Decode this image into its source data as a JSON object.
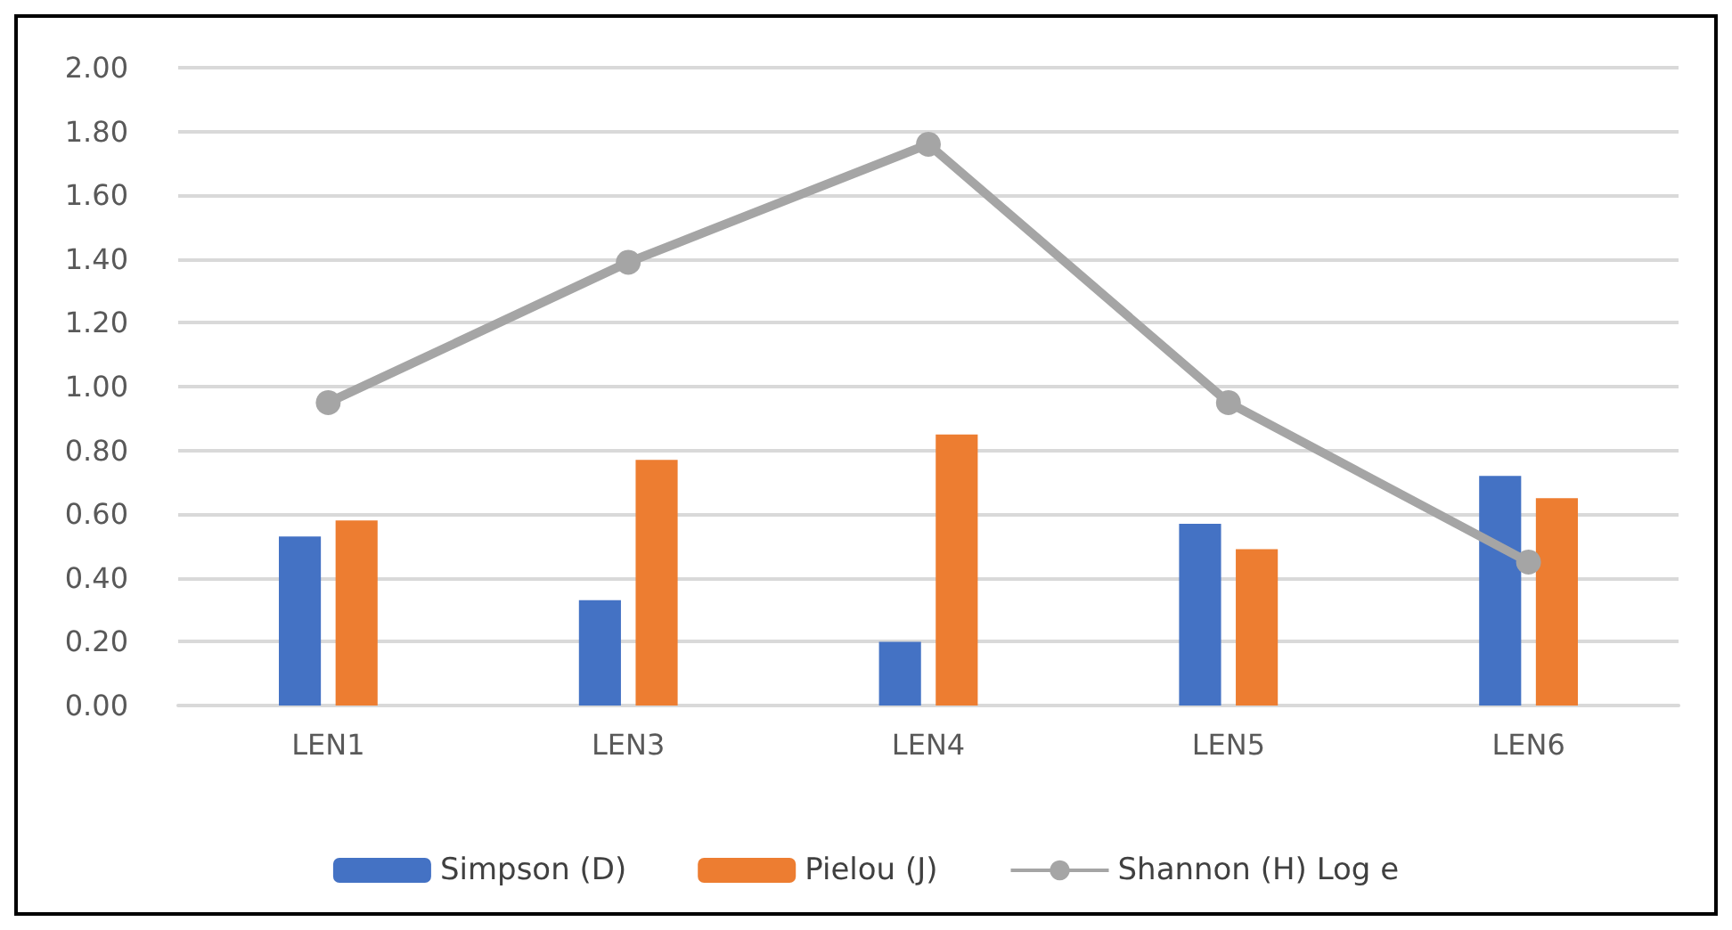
{
  "chart_data": {
    "type": "bar",
    "categories": [
      "LEN1",
      "LEN3",
      "LEN4",
      "LEN5",
      "LEN6"
    ],
    "series": [
      {
        "name": "Simpson (D)",
        "color": "#4472c4",
        "values": [
          0.53,
          0.33,
          0.2,
          0.57,
          0.72
        ]
      },
      {
        "name": "Pielou (J)",
        "color": "#ed7d31",
        "values": [
          0.58,
          0.77,
          0.85,
          0.49,
          0.65
        ]
      },
      {
        "name": "Shannon (H) Log e",
        "type": "line",
        "color": "#a5a5a5",
        "marker": "circle",
        "values": [
          0.95,
          1.39,
          1.76,
          0.95,
          0.45
        ]
      }
    ],
    "ylim": [
      0,
      2
    ],
    "yticks": [
      {
        "value": 0,
        "label": "0.00"
      },
      {
        "value": 0.2,
        "label": "0.20"
      },
      {
        "value": 0.4,
        "label": "0.40"
      },
      {
        "value": 0.6,
        "label": "0.60"
      },
      {
        "value": 0.8,
        "label": "0.80"
      },
      {
        "value": 1,
        "label": "1.00"
      },
      {
        "value": 1.2,
        "label": "1.20"
      },
      {
        "value": 1.4,
        "label": "1.40"
      },
      {
        "value": 1.6,
        "label": "1.60"
      },
      {
        "value": 1.8,
        "label": "1.80"
      },
      {
        "value": 2,
        "label": "2.00"
      }
    ],
    "grid": "y",
    "legend": "bottom"
  }
}
